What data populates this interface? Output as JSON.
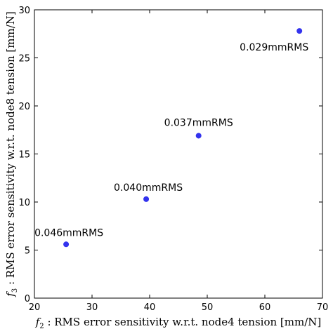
{
  "chart_data": {
    "type": "scatter",
    "xlabel": {
      "symbol": "f",
      "subscript": "2",
      "text": " : RMS error sensitivity w.r.t. node4 tension [mm/N]"
    },
    "ylabel": {
      "symbol": "f",
      "subscript": "3",
      "text": " : RMS error sensitivity w.r.t. node8 tension [mm/N]"
    },
    "xlim": [
      20,
      70
    ],
    "ylim": [
      0,
      30
    ],
    "xticks": [
      "20",
      "30",
      "40",
      "50",
      "60",
      "70"
    ],
    "yticks": [
      "0",
      "5",
      "10",
      "15",
      "20",
      "25",
      "30"
    ],
    "grid": false,
    "marker_color": "#3333ee",
    "points": [
      {
        "x": 25.5,
        "y": 5.6,
        "label": "0.046mmRMS"
      },
      {
        "x": 39.4,
        "y": 10.3,
        "label": "0.040mmRMS"
      },
      {
        "x": 48.5,
        "y": 16.9,
        "label": "0.037mmRMS"
      },
      {
        "x": 66.0,
        "y": 27.8,
        "label": "0.029mmRMS"
      }
    ]
  }
}
